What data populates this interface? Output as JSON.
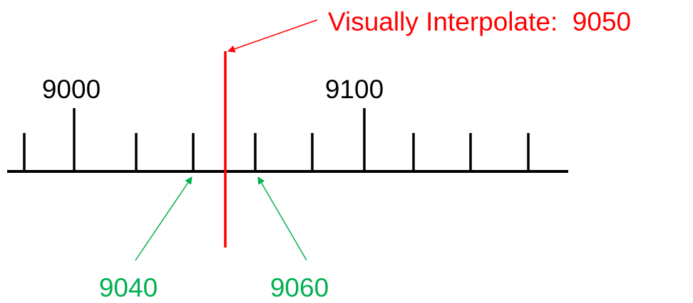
{
  "annotation": "Visually Interpolate:  9050",
  "major_labels": [
    "9000",
    "9100"
  ],
  "arrow_labels": [
    "9040",
    "9060"
  ]
}
